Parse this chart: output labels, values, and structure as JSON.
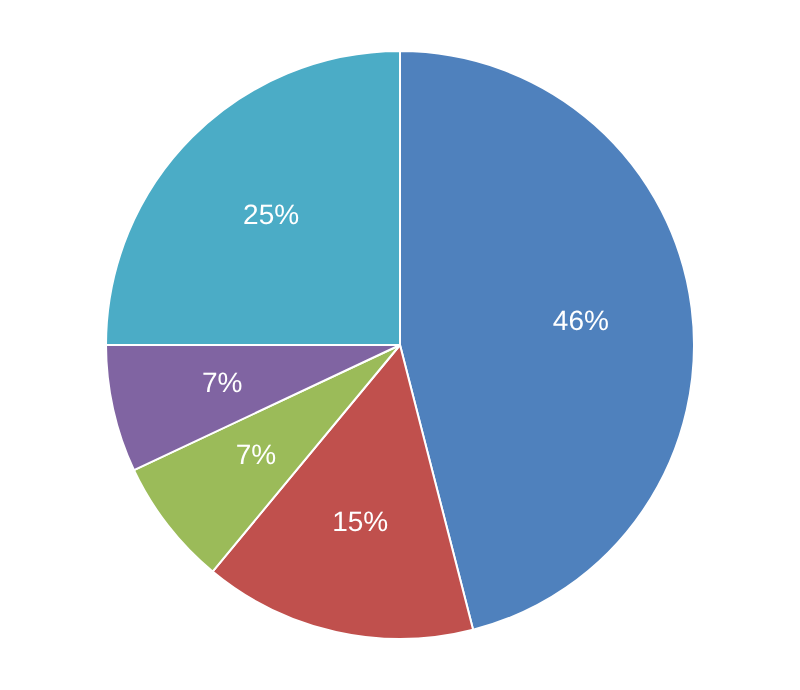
{
  "chart_data": {
    "type": "pie",
    "categories": [
      null,
      null,
      null,
      null,
      null
    ],
    "values": [
      46,
      15,
      7,
      7,
      25
    ],
    "colors": [
      "#4f81bd",
      "#c0504d",
      "#9bbb59",
      "#8064a2",
      "#4bacc6"
    ],
    "value_labels": [
      "46%",
      "15%",
      "7%",
      "7%",
      "25%"
    ],
    "legend": false
  }
}
